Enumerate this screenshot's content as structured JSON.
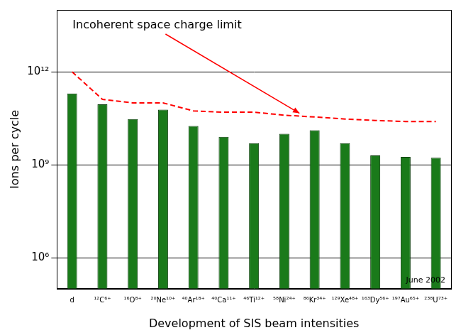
{
  "chart_data": {
    "type": "bar",
    "x_label": "Development of SIS beam intensities",
    "y_label": "Ions per cycle",
    "categories": [
      "d",
      "¹²C⁶⁺",
      "¹⁶O⁸⁺",
      "²⁰Ne¹⁰⁺",
      "⁴⁰Ar¹⁸⁺",
      "⁴⁰Ca¹¹⁺",
      "⁴⁶Ti¹²⁺",
      "⁵⁸Ni²⁴⁺",
      "⁸⁶Kr³⁴⁺",
      "¹²⁹Xe⁴⁸⁺",
      "¹⁶³Dy⁵⁶⁺",
      "¹⁹⁷Au⁶⁵⁺",
      "²³⁸U⁷³⁺"
    ],
    "series": [
      {
        "type": "bar",
        "color": "#1a7a1a",
        "values": [
          200000000000,
          90000000000,
          30000000000,
          60000000000,
          18000000000,
          8000000000,
          5000000000,
          10000000000,
          13000000000,
          5000000000,
          2000000000,
          1800000000,
          1700000000
        ]
      },
      {
        "name": "Incoherent space charge limit",
        "type": "line",
        "color": "#ff0000",
        "line_style": "dashed",
        "values": [
          1000000000000,
          130000000000,
          100000000000,
          100000000000,
          55000000000,
          50000000000,
          50000000000,
          40000000000,
          35000000000,
          30000000000,
          27000000000,
          25000000000,
          25000000000
        ]
      }
    ],
    "ylim": [
      100000,
      100000000000000
    ],
    "yticks": [
      {
        "value": 1000000,
        "label": "10⁶"
      },
      {
        "value": 1000000000,
        "label": "10⁹"
      },
      {
        "value": 1000000000000,
        "label": "10¹²"
      }
    ],
    "log": "y",
    "grid": true,
    "annotations": [
      "June 2002"
    ]
  }
}
